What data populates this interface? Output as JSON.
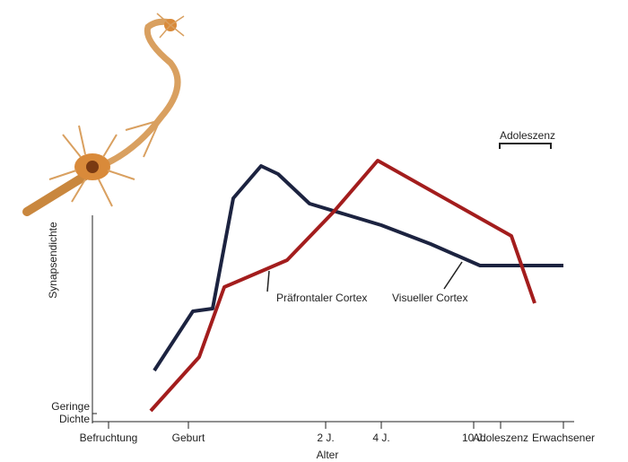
{
  "chart_data": {
    "type": "line",
    "x_label": "Alter",
    "y_label": "Synapsendichte",
    "xlim": [
      0,
      540
    ],
    "ylim": [
      0,
      100
    ],
    "xticks": [
      {
        "value": 21,
        "label": "Befruchtung"
      },
      {
        "value": 110,
        "label": "Geburt"
      },
      {
        "value": 263,
        "label": "2 J."
      },
      {
        "value": 325,
        "label": "4 J."
      },
      {
        "value": 428,
        "label": "10 J."
      },
      {
        "value": 458,
        "label": "Adoleszenz"
      },
      {
        "value": 528,
        "label": "Erwachsener"
      }
    ],
    "yticks": [
      {
        "value": 3,
        "label": "Geringe Dichte"
      }
    ],
    "annotation": "Adoleszenz",
    "series": [
      {
        "name": "Visueller Cortex",
        "color": "#1c2340",
        "x": [
          72,
          115,
          137,
          160,
          191,
          210,
          245,
          325,
          380,
          435,
          528
        ],
        "values": [
          19,
          41,
          42,
          83,
          95,
          92,
          81,
          73,
          66,
          58,
          58
        ]
      },
      {
        "name": "Präfrontaler Cortex",
        "color": "#a31d1d",
        "x": [
          68,
          122,
          150,
          220,
          272,
          321,
          470,
          496
        ],
        "values": [
          4,
          24,
          50,
          60,
          78,
          97,
          69,
          44
        ]
      }
    ]
  }
}
